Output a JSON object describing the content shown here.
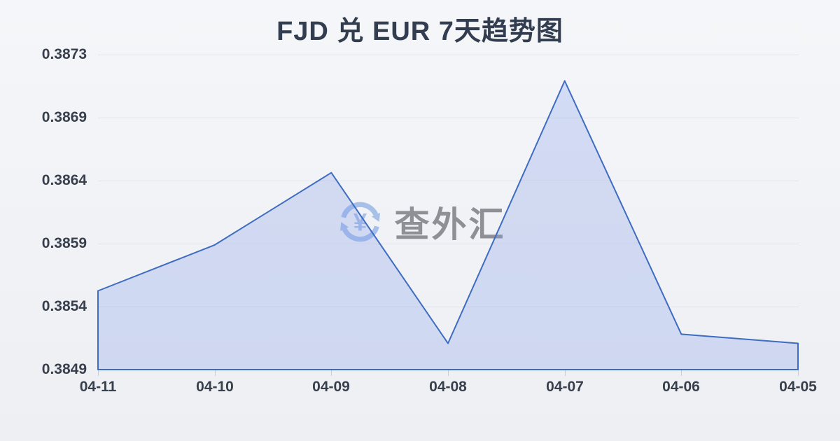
{
  "chart_data": {
    "type": "area",
    "title": "FJD 兑 EUR 7天趋势图",
    "categories": [
      "04-11",
      "04-10",
      "04-09",
      "04-08",
      "04-07",
      "04-06",
      "04-05"
    ],
    "values": [
      0.3855,
      0.38585,
      0.3864,
      0.3851,
      0.3871,
      0.38517,
      0.3851
    ],
    "y_ticks": [
      "0.3873",
      "0.3869",
      "0.3864",
      "0.3859",
      "0.3854",
      "0.3849"
    ],
    "ylim": [
      0.3849,
      0.3873
    ],
    "xlabel": "",
    "ylabel": "",
    "grid": true,
    "legend": "none",
    "line_color": "#3e6cc0",
    "fill_color": "rgba(130,156,232,0.28)",
    "label_color": "#39404d",
    "grid_color": "#e2e4e9"
  },
  "watermark": {
    "text": "查外汇",
    "currency_symbol": "¥",
    "icon_color": "#a6c0ea",
    "text_color": "#8e9095"
  }
}
